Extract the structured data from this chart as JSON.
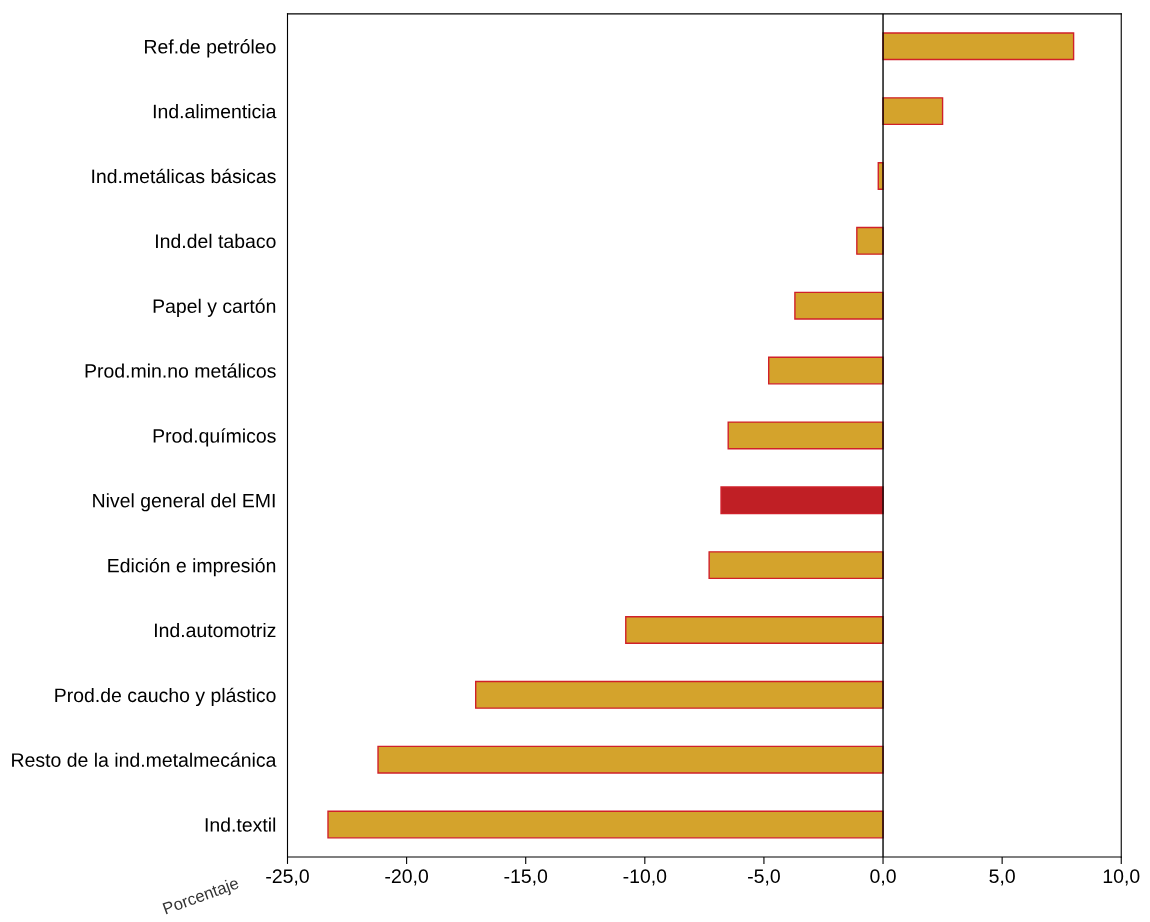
{
  "chart_data": {
    "type": "bar",
    "orientation": "horizontal",
    "xlabel": "Porcentaje",
    "categories": [
      "Ref.de petróleo",
      "Ind.alimenticia",
      "Ind.metálicas básicas",
      "Ind.del tabaco",
      "Papel y cartón",
      "Prod.min.no metálicos",
      "Prod.químicos",
      "Nivel general del EMI",
      "Edición e impresión",
      "Ind.automotriz",
      "Prod.de caucho y plástico",
      "Resto de la ind.metalmecánica",
      "Ind.textil"
    ],
    "values": [
      8.0,
      2.5,
      -0.2,
      -1.1,
      -3.7,
      -4.8,
      -6.5,
      -6.8,
      -7.3,
      -10.8,
      -17.1,
      -21.2,
      -23.3
    ],
    "colors": [
      "#d4a32c",
      "#d4a32c",
      "#d4a32c",
      "#d4a32c",
      "#d4a32c",
      "#d4a32c",
      "#d4a32c",
      "#c01f25",
      "#d4a32c",
      "#d4a32c",
      "#d4a32c",
      "#d4a32c",
      "#d4a32c"
    ],
    "xlim": [
      -25,
      10
    ],
    "xticks": [
      {
        "value": -25,
        "label": "-25,0"
      },
      {
        "value": -20,
        "label": "-20,0"
      },
      {
        "value": -15,
        "label": "-15,0"
      },
      {
        "value": -10,
        "label": "-10,0"
      },
      {
        "value": -5,
        "label": "-5,0"
      },
      {
        "value": 0,
        "label": "0,0"
      },
      {
        "value": 5,
        "label": "5,0"
      },
      {
        "value": 10,
        "label": "10,0"
      }
    ],
    "ref_lines": [
      {
        "axis": "x",
        "value": 0,
        "color": "#000000"
      }
    ],
    "grid": false,
    "legend": false
  }
}
